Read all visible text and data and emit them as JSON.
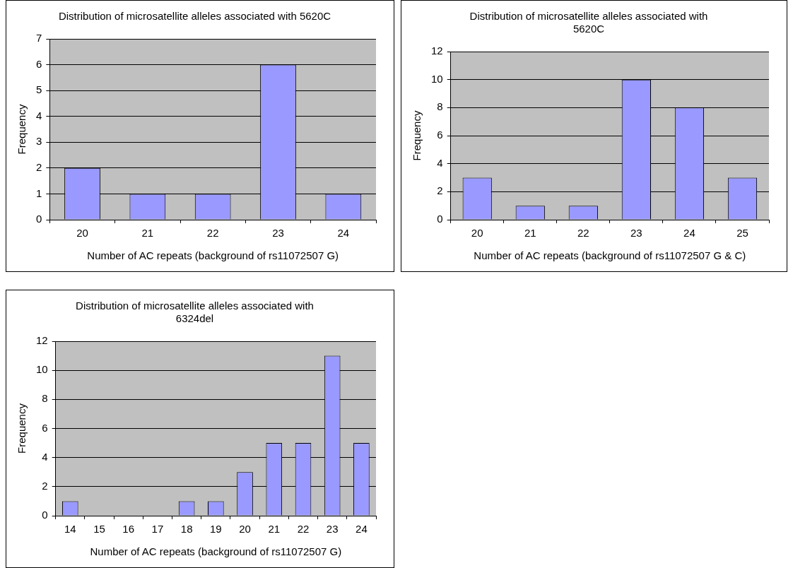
{
  "chart_data": [
    {
      "type": "bar",
      "title": "Distribution of microsatellite alleles associated with 5620C",
      "xlabel": "Number of AC repeats (background of rs11072507 G)",
      "ylabel": "Frequency",
      "categories": [
        "20",
        "21",
        "22",
        "23",
        "24"
      ],
      "values": [
        2,
        1,
        1,
        6,
        1
      ],
      "color": "#9999ff",
      "ylim": [
        0,
        7
      ],
      "yticks": [
        0,
        1,
        2,
        3,
        4,
        5,
        6,
        7
      ],
      "grid": "y",
      "legend": false
    },
    {
      "type": "bar",
      "title": "Distribution of microsatellite alleles associated with 5620C",
      "xlabel": "Number of AC repeats (background of rs11072507 G & C)",
      "ylabel": "Frequency",
      "categories": [
        "20",
        "21",
        "22",
        "23",
        "24",
        "25"
      ],
      "values": [
        3,
        1,
        1,
        10,
        8,
        3
      ],
      "color": "#9999ff",
      "ylim": [
        0,
        12
      ],
      "yticks": [
        0,
        2,
        4,
        6,
        8,
        10,
        12
      ],
      "grid": "y",
      "legend": false
    },
    {
      "type": "bar",
      "title": "Distribution of microsatellite alleles associated with 6324del",
      "xlabel": "Number of AC repeats (background of rs11072507 G)",
      "ylabel": "Frequency",
      "categories": [
        "14",
        "15",
        "16",
        "17",
        "18",
        "19",
        "20",
        "21",
        "22",
        "23",
        "24"
      ],
      "values": [
        1,
        0,
        0,
        0,
        1,
        1,
        3,
        5,
        5,
        11,
        5
      ],
      "color": "#9999ff",
      "ylim": [
        0,
        12
      ],
      "yticks": [
        0,
        2,
        4,
        6,
        8,
        10,
        12
      ],
      "grid": "y",
      "legend": false
    }
  ]
}
